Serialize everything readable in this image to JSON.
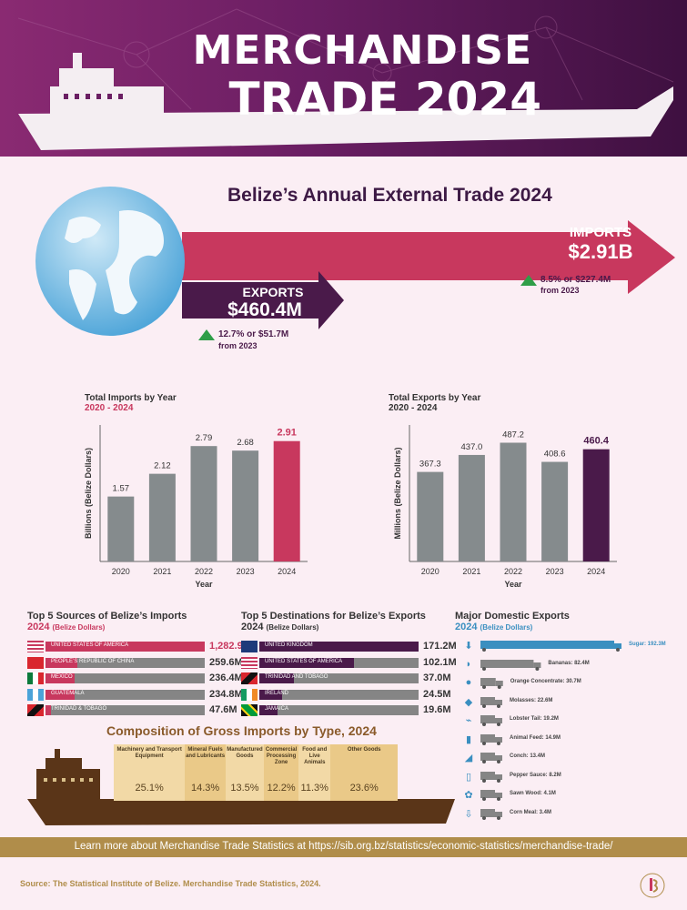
{
  "header": {
    "title_line1": "MERCHANDISE",
    "title_line2": "TRADE 2024"
  },
  "trade": {
    "title": "Belize’s Annual External Trade 2024",
    "imports": {
      "label": "IMPORTS",
      "value": "$2.91B",
      "change": "8.5% or $227.4M",
      "from": "from 2023"
    },
    "exports": {
      "label": "EXPORTS",
      "value": "$460.4M",
      "change": "12.7% or $51.7M",
      "from": "from 2023"
    }
  },
  "chart_data": [
    {
      "type": "bar",
      "title": "Total Imports by Year",
      "subtitle": "2020 - 2024",
      "xlabel": "Year",
      "ylabel": "Billions (Belize Dollars)",
      "categories": [
        "2020",
        "2021",
        "2022",
        "2023",
        "2024"
      ],
      "values": [
        1.57,
        2.12,
        2.79,
        2.68,
        2.91
      ],
      "value_labels": [
        "1.57",
        "2.12",
        "2.79",
        "2.68",
        "2.91"
      ],
      "ylim": [
        0,
        3.3
      ],
      "colors": [
        "#858b8d",
        "#858b8d",
        "#858b8d",
        "#858b8d",
        "#c8385e"
      ]
    },
    {
      "type": "bar",
      "title": "Total Exports by Year",
      "subtitle": "2020 - 2024",
      "xlabel": "Year",
      "ylabel": "Millions (Belize Dollars)",
      "categories": [
        "2020",
        "2021",
        "2022",
        "2023",
        "2024"
      ],
      "values": [
        367.3,
        437.0,
        487.2,
        408.6,
        460.4
      ],
      "value_labels": [
        "367.3",
        "437.0",
        "487.2",
        "408.6",
        "460.4"
      ],
      "ylim": [
        0,
        560
      ],
      "colors": [
        "#858b8d",
        "#858b8d",
        "#858b8d",
        "#858b8d",
        "#4a1a4a"
      ]
    },
    {
      "type": "bar",
      "title": "Top 5 Sources of Belize’s Imports",
      "subtitle": "2024",
      "subtitle_note": "(Belize Dollars)",
      "categories": [
        "UNITED STATES OF AMERICA",
        "PEOPLE’S REPUBLIC OF CHINA",
        "MEXICO",
        "GUATEMALA",
        "TRINIDAD & TOBAGO"
      ],
      "values": [
        1282.9,
        259.6,
        236.4,
        234.8,
        47.6
      ],
      "value_labels": [
        "1,282.9M",
        "259.6M",
        "236.4M",
        "234.8M",
        "47.6M"
      ],
      "color": "#c8385e"
    },
    {
      "type": "bar",
      "title": "Top 5 Destinations for Belize’s Exports",
      "subtitle": "2024",
      "subtitle_note": "(Belize Dollars)",
      "categories": [
        "UNITED KINGDOM",
        "UNITED STATES OF AMERICA",
        "TRINIDAD AND TOBAGO",
        "IRELAND",
        "JAMAICA"
      ],
      "values": [
        171.2,
        102.1,
        37.0,
        24.5,
        19.6
      ],
      "value_labels": [
        "171.2M",
        "102.1M",
        "37.0M",
        "24.5M",
        "19.6M"
      ],
      "color": "#4a1a4a"
    },
    {
      "type": "bar",
      "title": "Composition of Gross Imports by Type, 2024",
      "categories": [
        "Machinery and Transport Equipment",
        "Mineral Fuels and Lubricants",
        "Manufactured Goods",
        "Commercial Processing Zone",
        "Food and Live Animals",
        "Other Goods"
      ],
      "values": [
        25.1,
        14.3,
        13.5,
        12.2,
        11.3,
        23.6
      ],
      "value_labels": [
        "25.1%",
        "14.3%",
        "13.5%",
        "12.2%",
        "11.3%",
        "23.6%"
      ]
    },
    {
      "type": "bar",
      "title": "Major Domestic Exports",
      "subtitle": "2024",
      "subtitle_note": "(Belize Dollars)",
      "categories": [
        "Sugar",
        "Bananas",
        "Orange Concentrate",
        "Molasses",
        "Lobster Tail",
        "Animal Feed",
        "Conch",
        "Pepper Sauce",
        "Sawn Wood",
        "Corn Meal"
      ],
      "values": [
        192.3,
        82.4,
        30.7,
        22.6,
        19.2,
        14.9,
        13.4,
        8.2,
        4.1,
        3.4
      ],
      "value_labels": [
        "Sugar: 192.3M",
        "Bananas: 82.4M",
        "Orange Concentrate: 30.7M",
        "Molasses: 22.6M",
        "Lobster Tail: 19.2M",
        "Animal Feed: 14.9M",
        "Conch: 13.4M",
        "Pepper Sauce: 8.2M",
        "Sawn Wood: 4.1M",
        "Corn Meal: 3.4M"
      ],
      "icons": [
        "sugar-icon",
        "banana-icon",
        "orange-icon",
        "molasses-icon",
        "lobster-icon",
        "animal-feed-icon",
        "conch-icon",
        "pepper-sauce-icon",
        "sawn-wood-icon",
        "corn-icon"
      ],
      "color": "#3a8fc0"
    }
  ],
  "footer": {
    "learn_more": "Learn more about Merchandise Trade Statistics at https://sib.org.bz/statistics/economic-statistics/merchandise-trade/",
    "source": "Source: The Statistical Institute of Belize. Merchandise Trade Statistics, 2024."
  }
}
